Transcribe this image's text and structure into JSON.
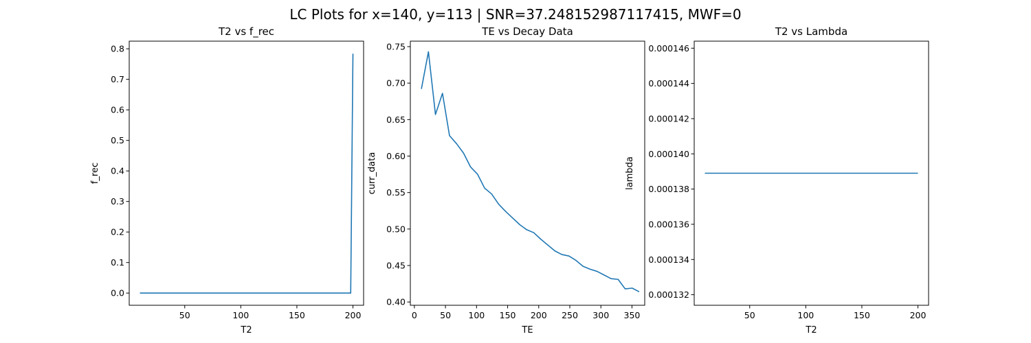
{
  "figure": {
    "suptitle": "LC Plots for x=140, y=113 | SNR=37.248152987117415, MWF=0"
  },
  "chart_data": [
    {
      "type": "line",
      "title": "T2 vs f_rec",
      "xlabel": "T2",
      "ylabel": "f_rec",
      "xlim": [
        0.5,
        209.5
      ],
      "ylim": [
        -0.04,
        0.825
      ],
      "xticks": [
        50,
        100,
        150,
        200
      ],
      "xtick_labels": [
        "50",
        "100",
        "150",
        "200"
      ],
      "yticks": [
        0,
        0.1,
        0.2,
        0.3,
        0.4,
        0.5,
        0.6,
        0.7,
        0.8
      ],
      "ytick_labels": [
        "0.0",
        "0.1",
        "0.2",
        "0.3",
        "0.4",
        "0.5",
        "0.6",
        "0.7",
        "0.8"
      ],
      "grid": false,
      "color": "#1f77b4",
      "series": [
        {
          "x": [
            10,
            198,
            200
          ],
          "y": [
            0.0,
            0.0,
            0.784
          ]
        }
      ]
    },
    {
      "type": "line",
      "title": "TE vs Decay Data",
      "xlabel": "TE",
      "ylabel": "curr_data",
      "xlim": [
        -6.5,
        370.5
      ],
      "ylim": [
        0.3955,
        0.7575
      ],
      "xticks": [
        0,
        50,
        100,
        150,
        200,
        250,
        300,
        350
      ],
      "xtick_labels": [
        "0",
        "50",
        "100",
        "150",
        "200",
        "250",
        "300",
        "350"
      ],
      "yticks": [
        0.4,
        0.45,
        0.5,
        0.55,
        0.6,
        0.65,
        0.7,
        0.75
      ],
      "ytick_labels": [
        "0.40",
        "0.45",
        "0.50",
        "0.55",
        "0.60",
        "0.65",
        "0.70",
        "0.75"
      ],
      "grid": false,
      "color": "#1f77b4",
      "series": [
        {
          "x": [
            11.3,
            22.6,
            33.9,
            45.2,
            56.5,
            67.8,
            79.1,
            90.4,
            101.7,
            113,
            124.3,
            135.6,
            146.9,
            158.2,
            169.5,
            180.8,
            192.1,
            203.4,
            214.7,
            226,
            237.3,
            248.6,
            259.9,
            271.2,
            282.5,
            293.8,
            305.1,
            316.4,
            327.7,
            339,
            350.3,
            361.6
          ],
          "y": [
            0.692,
            0.743,
            0.657,
            0.686,
            0.628,
            0.617,
            0.604,
            0.585,
            0.575,
            0.556,
            0.548,
            0.534,
            0.524,
            0.515,
            0.506,
            0.499,
            0.495,
            0.486,
            0.478,
            0.47,
            0.465,
            0.463,
            0.457,
            0.449,
            0.445,
            0.442,
            0.437,
            0.432,
            0.431,
            0.418,
            0.419,
            0.414
          ]
        }
      ]
    },
    {
      "type": "line",
      "title": "T2 vs Lambda",
      "xlabel": "T2",
      "ylabel": "lambda",
      "xlim": [
        0.5,
        209.5
      ],
      "ylim": [
        0.0001314,
        0.0001464
      ],
      "xticks": [
        50,
        100,
        150,
        200
      ],
      "xtick_labels": [
        "50",
        "100",
        "150",
        "200"
      ],
      "yticks": [
        0.000132,
        0.000134,
        0.000136,
        0.000138,
        0.00014,
        0.000142,
        0.000144,
        0.000146
      ],
      "ytick_labels": [
        "0.000132",
        "0.000134",
        "0.000136",
        "0.000138",
        "0.000140",
        "0.000142",
        "0.000144",
        "0.000146"
      ],
      "grid": false,
      "color": "#1f77b4",
      "series": [
        {
          "x": [
            10,
            200
          ],
          "y": [
            0.0001389,
            0.0001389
          ]
        }
      ]
    }
  ]
}
